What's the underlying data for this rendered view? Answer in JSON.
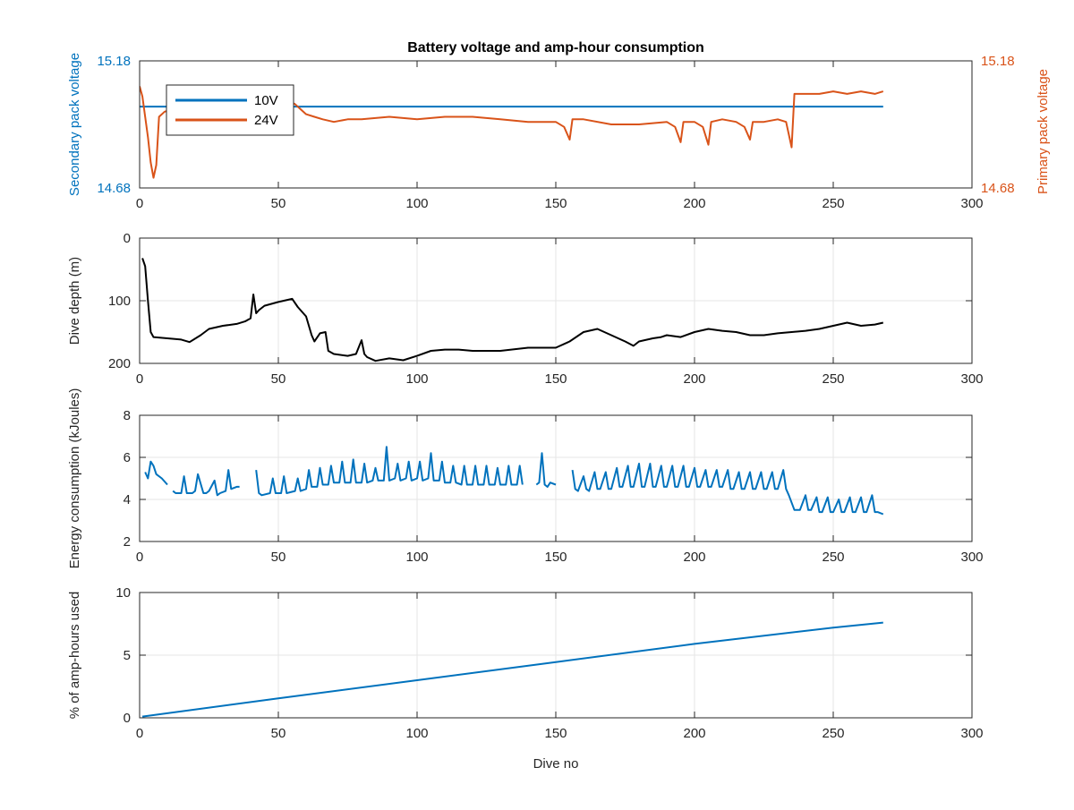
{
  "chart_data": [
    {
      "type": "line",
      "title": "Battery voltage and amp-hour consumption",
      "xlabel": "",
      "ylabel": "Secondary pack voltage",
      "y2label": "Primary pack voltage",
      "xlim": [
        0,
        300
      ],
      "ylim": [
        14.68,
        15.18
      ],
      "y2lim": [
        14.68,
        15.18
      ],
      "xticks": [
        "0",
        "50",
        "100",
        "150",
        "200",
        "250",
        "300"
      ],
      "yticks": [
        "14.68",
        "15.18"
      ],
      "y2ticks": [
        "14.68",
        "15.18"
      ],
      "grid": false,
      "legend_placement": "top-left",
      "series": [
        {
          "name": "10V",
          "color": "#0072BD",
          "axis": "left",
          "x": [
            0,
            268
          ],
          "y": [
            15.0,
            15.0
          ]
        },
        {
          "name": "24V",
          "color": "#D95319",
          "axis": "right",
          "x": [
            0,
            1,
            2,
            3,
            4,
            5,
            6,
            7,
            9,
            12,
            20,
            30,
            40,
            50,
            54,
            56,
            58,
            60,
            63,
            66,
            70,
            75,
            80,
            90,
            100,
            110,
            120,
            130,
            140,
            145,
            150,
            153,
            155,
            156,
            160,
            170,
            180,
            190,
            193,
            195,
            196,
            200,
            203,
            205,
            206,
            210,
            215,
            218,
            220,
            221,
            225,
            230,
            233,
            235,
            236,
            240,
            245,
            250,
            255,
            260,
            265,
            268
          ],
          "y": [
            15.08,
            15.04,
            14.96,
            14.88,
            14.78,
            14.72,
            14.77,
            14.96,
            14.98,
            14.99,
            15.0,
            15.0,
            15.0,
            15.0,
            15.02,
            15.01,
            14.99,
            14.97,
            14.96,
            14.95,
            14.94,
            14.95,
            14.95,
            14.96,
            14.95,
            14.96,
            14.96,
            14.95,
            14.94,
            14.94,
            14.94,
            14.92,
            14.87,
            14.95,
            14.95,
            14.93,
            14.93,
            14.94,
            14.92,
            14.86,
            14.94,
            14.94,
            14.92,
            14.85,
            14.94,
            14.95,
            14.94,
            14.92,
            14.87,
            14.94,
            14.94,
            14.95,
            14.94,
            14.84,
            15.05,
            15.05,
            15.05,
            15.06,
            15.05,
            15.06,
            15.05,
            15.06
          ]
        }
      ]
    },
    {
      "type": "line",
      "title": "",
      "xlabel": "",
      "ylabel": "Dive depth (m)",
      "xlim": [
        0,
        300
      ],
      "ylim": [
        200,
        0
      ],
      "y_reversed": true,
      "xticks": [
        "0",
        "50",
        "100",
        "150",
        "200",
        "250",
        "300"
      ],
      "yticks": [
        "0",
        "100",
        "200"
      ],
      "grid": true,
      "series": [
        {
          "name": "",
          "color": "#000000",
          "x": [
            1,
            2,
            3,
            4,
            5,
            10,
            15,
            18,
            22,
            25,
            30,
            35,
            38,
            40,
            41,
            42,
            43,
            45,
            50,
            55,
            57,
            60,
            62,
            63,
            65,
            67,
            68,
            70,
            75,
            78,
            80,
            81,
            82,
            85,
            90,
            95,
            100,
            105,
            110,
            115,
            120,
            125,
            130,
            140,
            150,
            155,
            160,
            165,
            170,
            175,
            178,
            180,
            185,
            188,
            190,
            195,
            200,
            205,
            210,
            215,
            220,
            225,
            230,
            235,
            240,
            245,
            250,
            255,
            260,
            265,
            268
          ],
          "y": [
            32,
            45,
            100,
            150,
            158,
            160,
            162,
            166,
            155,
            145,
            140,
            137,
            133,
            128,
            90,
            120,
            115,
            108,
            102,
            97,
            110,
            125,
            155,
            165,
            152,
            150,
            180,
            185,
            188,
            185,
            163,
            185,
            190,
            196,
            192,
            195,
            188,
            180,
            178,
            178,
            180,
            180,
            180,
            175,
            175,
            165,
            150,
            145,
            155,
            165,
            172,
            165,
            160,
            158,
            155,
            158,
            150,
            145,
            148,
            150,
            155,
            155,
            152,
            150,
            148,
            145,
            140,
            135,
            140,
            138,
            135
          ]
        }
      ]
    },
    {
      "type": "line",
      "title": "",
      "xlabel": "",
      "ylabel": "Energy consumption (kJoules)",
      "xlim": [
        0,
        300
      ],
      "ylim": [
        2,
        8
      ],
      "xticks": [
        "0",
        "50",
        "100",
        "150",
        "200",
        "250",
        "300"
      ],
      "yticks": [
        "2",
        "4",
        "6",
        "8"
      ],
      "grid": true,
      "series": [
        {
          "name": "",
          "color": "#0072BD",
          "segments": [
            {
              "x": [
                2,
                3,
                4,
                5,
                6,
                8,
                10
              ],
              "y": [
                5.3,
                5.0,
                5.8,
                5.6,
                5.2,
                5.0,
                4.7
              ]
            },
            {
              "x": [
                12,
                13,
                15,
                16,
                17,
                19,
                20,
                21,
                23,
                24,
                25,
                27,
                28,
                29,
                31,
                32,
                33,
                35,
                36
              ],
              "y": [
                4.4,
                4.3,
                4.3,
                5.1,
                4.3,
                4.3,
                4.4,
                5.2,
                4.3,
                4.3,
                4.4,
                4.9,
                4.2,
                4.3,
                4.4,
                5.4,
                4.5,
                4.6,
                4.6
              ]
            },
            {
              "x": [
                42,
                43,
                44,
                47,
                48,
                49,
                51,
                52,
                53,
                56,
                57,
                58,
                60,
                61,
                62,
                64,
                65,
                66,
                68,
                69,
                70,
                72,
                73,
                74,
                76,
                77,
                78,
                80,
                81,
                82,
                84,
                85,
                86,
                88,
                89,
                90,
                92,
                93,
                94,
                96,
                97,
                98,
                100,
                101,
                102,
                104,
                105,
                106,
                108,
                109,
                110,
                112,
                113,
                114,
                116,
                117,
                118,
                120,
                121,
                122,
                124,
                125,
                126,
                128,
                129,
                130,
                132,
                133,
                134,
                136,
                137,
                138
              ],
              "y": [
                5.4,
                4.3,
                4.2,
                4.3,
                5.0,
                4.3,
                4.3,
                5.1,
                4.3,
                4.4,
                5.0,
                4.4,
                4.5,
                5.4,
                4.6,
                4.6,
                5.5,
                4.7,
                4.7,
                5.6,
                4.8,
                4.8,
                5.8,
                4.8,
                4.8,
                5.9,
                4.8,
                4.8,
                5.7,
                4.8,
                4.9,
                5.5,
                4.9,
                4.9,
                6.5,
                4.9,
                5.0,
                5.7,
                4.9,
                5.0,
                5.8,
                4.9,
                5.0,
                5.8,
                4.9,
                5.0,
                6.2,
                4.9,
                4.9,
                5.8,
                4.8,
                4.8,
                5.6,
                4.8,
                4.7,
                5.6,
                4.7,
                4.7,
                5.6,
                4.7,
                4.7,
                5.6,
                4.7,
                4.7,
                5.5,
                4.7,
                4.7,
                5.6,
                4.7,
                4.7,
                5.6,
                4.7
              ]
            },
            {
              "x": [
                143,
                144,
                145,
                146,
                147,
                148,
                150
              ],
              "y": [
                4.7,
                4.8,
                6.2,
                4.7,
                4.6,
                4.8,
                4.7
              ]
            },
            {
              "x": [
                156,
                157,
                158,
                160,
                161,
                162,
                164,
                165,
                166,
                168,
                169,
                170,
                172,
                173,
                174,
                176,
                177,
                178,
                180,
                181,
                182,
                184,
                185,
                186,
                188,
                189,
                190,
                192,
                193,
                194,
                196,
                197,
                198,
                200,
                201,
                202,
                204,
                205,
                206,
                208,
                209,
                210,
                212,
                213,
                214,
                216,
                217,
                218,
                220,
                221,
                222,
                224,
                225,
                226,
                228,
                229,
                230,
                232,
                233,
                234,
                236,
                237,
                238,
                240,
                241,
                242,
                244,
                245,
                246,
                248,
                249,
                250,
                252,
                253,
                254,
                256,
                257,
                258,
                260,
                261,
                262,
                264,
                265,
                266,
                268
              ],
              "y": [
                5.4,
                4.5,
                4.4,
                5.1,
                4.5,
                4.4,
                5.3,
                4.5,
                4.5,
                5.3,
                4.5,
                4.5,
                5.5,
                4.6,
                4.6,
                5.6,
                4.6,
                4.6,
                5.7,
                4.6,
                4.6,
                5.7,
                4.6,
                4.6,
                5.6,
                4.6,
                4.6,
                5.6,
                4.6,
                4.6,
                5.6,
                4.6,
                4.6,
                5.5,
                4.6,
                4.6,
                5.4,
                4.6,
                4.6,
                5.4,
                4.6,
                4.6,
                5.4,
                4.5,
                4.5,
                5.3,
                4.5,
                4.5,
                5.3,
                4.5,
                4.5,
                5.3,
                4.5,
                4.5,
                5.3,
                4.5,
                4.5,
                5.4,
                4.5,
                4.2,
                3.5,
                3.5,
                3.5,
                4.2,
                3.5,
                3.5,
                4.1,
                3.4,
                3.4,
                4.1,
                3.4,
                3.4,
                4.0,
                3.4,
                3.4,
                4.1,
                3.4,
                3.4,
                4.1,
                3.4,
                3.4,
                4.2,
                3.4,
                3.4,
                3.3
              ]
            }
          ]
        }
      ]
    },
    {
      "type": "line",
      "title": "",
      "xlabel": "Dive no",
      "ylabel": "% of amp-hours used",
      "xlim": [
        0,
        300
      ],
      "ylim": [
        0,
        10
      ],
      "xticks": [
        "0",
        "50",
        "100",
        "150",
        "200",
        "250",
        "300"
      ],
      "yticks": [
        "0",
        "5",
        "10"
      ],
      "grid": true,
      "series": [
        {
          "name": "",
          "color": "#0072BD",
          "x": [
            1,
            50,
            100,
            150,
            200,
            250,
            268
          ],
          "y": [
            0.1,
            1.55,
            3.0,
            4.45,
            5.9,
            7.2,
            7.6
          ]
        }
      ]
    }
  ]
}
